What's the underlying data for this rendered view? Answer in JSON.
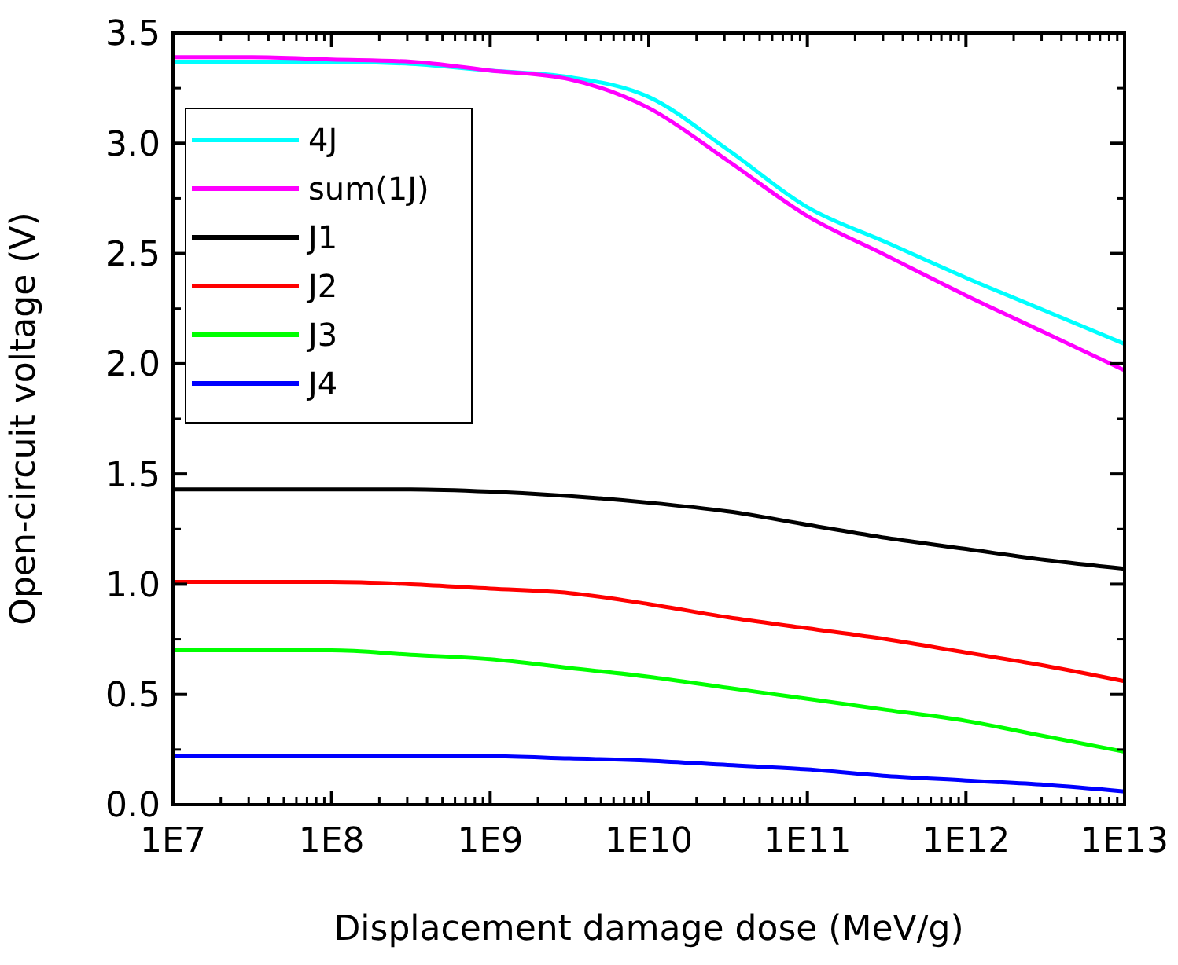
{
  "chart_data": {
    "type": "line",
    "xlabel": "Displacement damage dose (MeV/g)",
    "ylabel": "Open-circuit voltage (V)",
    "x": [
      10000000.0,
      31600000.0,
      100000000.0,
      316000000.0,
      1000000000.0,
      3160000000.0,
      10000000000.0,
      31600000000.0,
      100000000000.0,
      316000000000.0,
      1000000000000.0,
      3160000000000.0,
      10000000000000.0
    ],
    "log": "x",
    "xlim": [
      10000000.0,
      10000000000000.0
    ],
    "xticks": [
      {
        "value": 10000000.0,
        "label": "1E7"
      },
      {
        "value": 100000000.0,
        "label": "1E8"
      },
      {
        "value": 1000000000.0,
        "label": "1E9"
      },
      {
        "value": 10000000000.0,
        "label": "1E10"
      },
      {
        "value": 100000000000.0,
        "label": "1E11"
      },
      {
        "value": 1000000000000.0,
        "label": "1E12"
      },
      {
        "value": 10000000000000.0,
        "label": "1E13"
      }
    ],
    "ylim": [
      0,
      3.5
    ],
    "yticks": [
      {
        "value": 0,
        "label": "0.0"
      },
      {
        "value": 0.5,
        "label": "0.5"
      },
      {
        "value": 1,
        "label": "1.0"
      },
      {
        "value": 1.5,
        "label": "1.5"
      },
      {
        "value": 2,
        "label": "2.0"
      },
      {
        "value": 2.5,
        "label": "2.5"
      },
      {
        "value": 3,
        "label": "3.0"
      },
      {
        "value": 3.5,
        "label": "3.5"
      }
    ],
    "grid": false,
    "legend": "top left",
    "marker": "none",
    "line_style": "solid",
    "series": [
      {
        "name": "4J",
        "color": "#00ffff",
        "values": [
          3.37,
          3.37,
          3.37,
          3.36,
          3.33,
          3.3,
          3.21,
          2.97,
          2.71,
          2.55,
          2.39,
          2.24,
          2.09
        ]
      },
      {
        "name": "sum(1J)",
        "color": "#ff00ff",
        "values": [
          3.39,
          3.39,
          3.38,
          3.37,
          3.33,
          3.29,
          3.16,
          2.92,
          2.67,
          2.49,
          2.31,
          2.14,
          1.97
        ]
      },
      {
        "name": "J1",
        "color": "#000000",
        "values": [
          1.43,
          1.43,
          1.43,
          1.43,
          1.42,
          1.4,
          1.37,
          1.33,
          1.27,
          1.21,
          1.16,
          1.11,
          1.07
        ]
      },
      {
        "name": "J2",
        "color": "#ff0000",
        "values": [
          1.01,
          1.01,
          1.01,
          1.0,
          0.98,
          0.96,
          0.91,
          0.85,
          0.8,
          0.75,
          0.69,
          0.63,
          0.56
        ]
      },
      {
        "name": "J3",
        "color": "#00ff00",
        "values": [
          0.7,
          0.7,
          0.7,
          0.68,
          0.66,
          0.62,
          0.58,
          0.53,
          0.48,
          0.43,
          0.38,
          0.31,
          0.24
        ]
      },
      {
        "name": "J4",
        "color": "#0000ff",
        "values": [
          0.22,
          0.22,
          0.22,
          0.22,
          0.22,
          0.21,
          0.2,
          0.18,
          0.16,
          0.13,
          0.11,
          0.09,
          0.06
        ]
      }
    ]
  }
}
